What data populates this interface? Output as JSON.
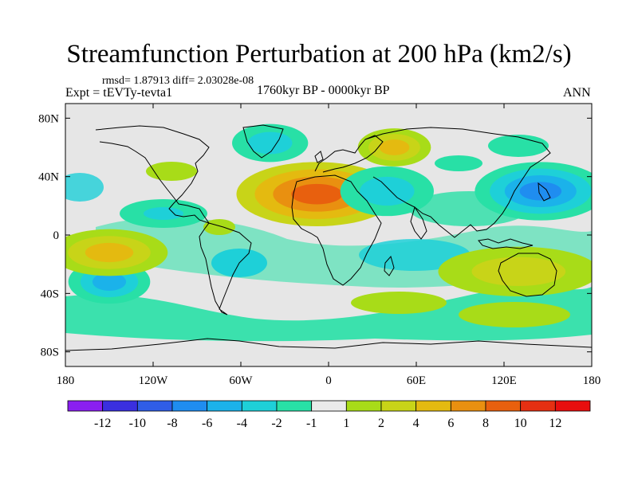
{
  "header": {
    "title": "Streamfunction Perturbation at 200 hPa (km2/s)",
    "stats": "rmsd= 1.87913 diff= 2.03028e-08",
    "experiment": "Expt = tEVTy-tevta1",
    "period": "1760kyr BP - 0000kyr BP",
    "season": "ANN"
  },
  "map": {
    "lat_labels": [
      "80N",
      "40N",
      "0",
      "40S",
      "80S"
    ],
    "lon_labels": [
      "180",
      "120W",
      "60W",
      "0",
      "60E",
      "120E",
      "180"
    ],
    "lon_range": [
      -180,
      180
    ],
    "lat_range": [
      -90,
      90
    ],
    "anomalies": [
      {
        "lon": -8,
        "lat": 28,
        "rx": 55,
        "ry": 22,
        "levels": [
          2,
          4,
          6,
          8
        ]
      },
      {
        "lon": 145,
        "lat": 30,
        "rx": 45,
        "ry": 20,
        "levels": [
          -1,
          -2,
          -4,
          -6
        ]
      },
      {
        "lon": -150,
        "lat": -32,
        "rx": 28,
        "ry": 15,
        "levels": [
          -1,
          -2,
          -4
        ]
      },
      {
        "lon": -150,
        "lat": -12,
        "rx": 40,
        "ry": 16,
        "levels": [
          1,
          2,
          4
        ]
      },
      {
        "lon": -40,
        "lat": 63,
        "rx": 26,
        "ry": 13,
        "levels": [
          -1,
          -2
        ]
      },
      {
        "lon": 45,
        "lat": 60,
        "rx": 25,
        "ry": 13,
        "levels": [
          1,
          2,
          4
        ]
      },
      {
        "lon": 130,
        "lat": -25,
        "rx": 55,
        "ry": 17,
        "levels": [
          1,
          2
        ]
      },
      {
        "lon": 40,
        "lat": 30,
        "rx": 32,
        "ry": 17,
        "levels": [
          -1,
          -2
        ]
      }
    ]
  },
  "colorbar": {
    "labels": [
      "-12",
      "-10",
      "-8",
      "-6",
      "-4",
      "-2",
      "-1",
      "1",
      "2",
      "4",
      "6",
      "8",
      "10",
      "12"
    ],
    "colors": [
      "#8a1ff0",
      "#3a2fdf",
      "#2f5de6",
      "#1f8df0",
      "#1bb2ea",
      "#1ed0d8",
      "#28e0a6",
      "#eaeaea",
      "#a8dc18",
      "#c8d418",
      "#e4ba10",
      "#e99010",
      "#e8600e",
      "#e53012",
      "#e80e0e"
    ]
  }
}
